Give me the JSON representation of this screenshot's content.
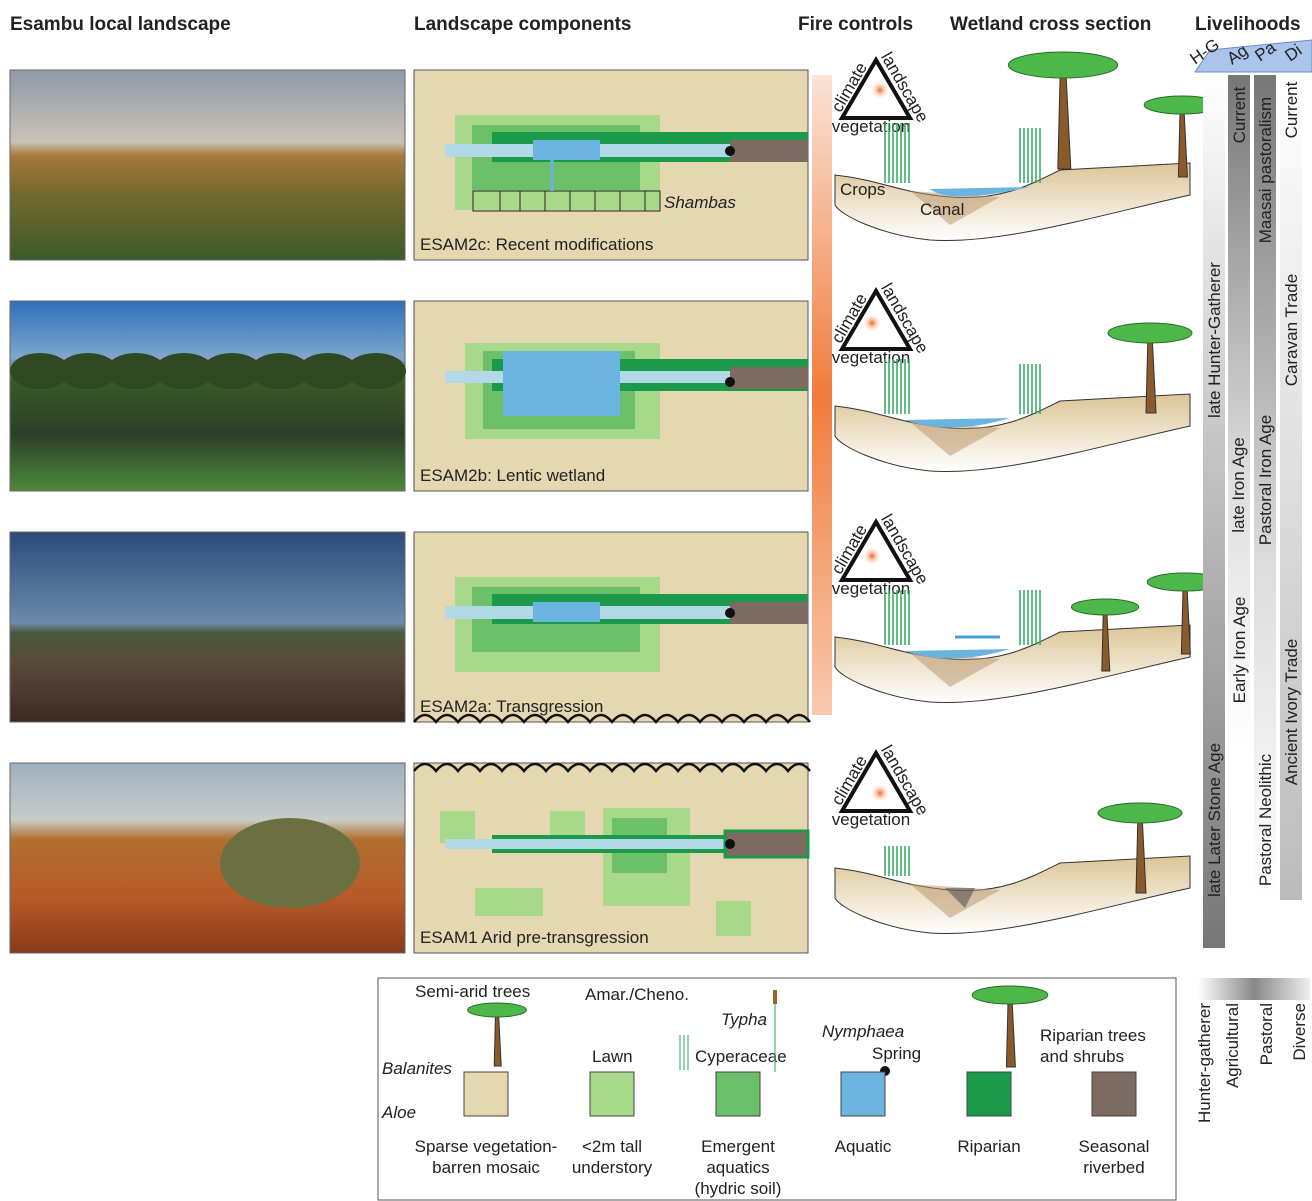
{
  "headers": [
    "Esambu local landscape",
    "Landscape components",
    "Fire controls",
    "Wetland cross section",
    "Livelihoods"
  ],
  "livelihood_groups": [
    "H-G",
    "Ag",
    "Pa",
    "Di"
  ],
  "panels": [
    "ESAM2c: Recent modifications",
    "ESAM2b: Lentic wetland",
    "ESAM2a: Transgression",
    "ESAM1 Arid pre-transgression"
  ],
  "shambas": "Shambas",
  "fire_triangle": {
    "left": "climate",
    "right": "landscape",
    "bottom": "vegetation"
  },
  "cross_section": {
    "crops": "Crops",
    "canal": "Canal"
  },
  "livelihoods": {
    "hunter_gatherer": [
      "late Hunter-Gatherer",
      "late Later Stone Age"
    ],
    "agricultural": [
      "Current",
      "late Iron Age",
      "Early Iron Age"
    ],
    "pastoral": [
      "Maasai pastoralism",
      "Pastoral Iron Age",
      "Pastoral Neolithic"
    ],
    "diverse": [
      "Current",
      "Caravan Trade",
      "Ancient Ivory Trade"
    ]
  },
  "legend": {
    "symbols": {
      "semi_arid_trees": "Semi-arid trees",
      "amar_cheno": "Amar./Cheno.",
      "typha": "Typha",
      "nymphaea": "Nymphaea",
      "spring": "Spring",
      "riparian_trees": [
        "Riparian trees",
        "and shrubs"
      ],
      "balanites": "Balanites",
      "lawn": "Lawn",
      "cyperaceae": "Cyperaceae",
      "aloe": "Aloe"
    },
    "units": [
      [
        "Sparse vegetation-",
        "barren mosaic"
      ],
      [
        "<2m tall",
        "understory"
      ],
      [
        "Emergent",
        "aquatics",
        "(hydric soil)"
      ],
      [
        "Aquatic"
      ],
      [
        "Riparian"
      ],
      [
        "Seasonal",
        "riverbed"
      ]
    ]
  },
  "livelihood_key": [
    "Hunter-gatherer",
    "Agricultural",
    "Pastoral",
    "Diverse"
  ]
}
